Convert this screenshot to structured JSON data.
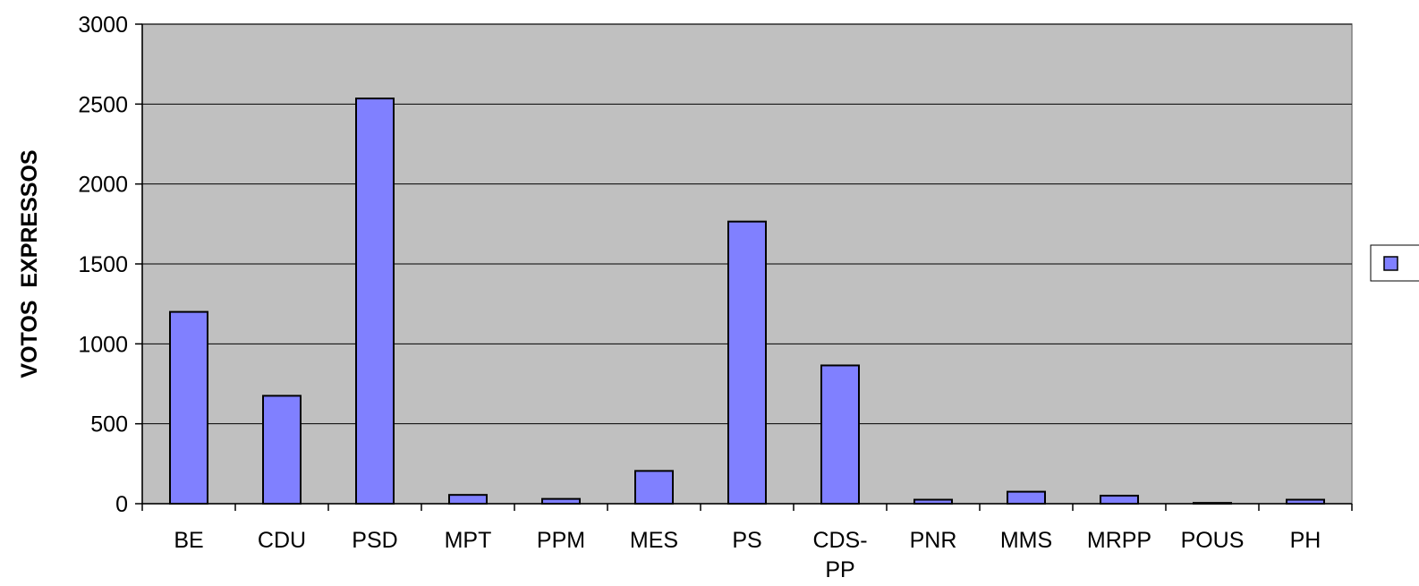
{
  "chart_data": {
    "type": "bar",
    "categories": [
      [
        "BE"
      ],
      [
        "CDU"
      ],
      [
        "PSD"
      ],
      [
        "MPT"
      ],
      [
        "PPM"
      ],
      [
        "MES"
      ],
      [
        "PS"
      ],
      [
        "CDS-",
        "PP"
      ],
      [
        "PNR"
      ],
      [
        "MMS"
      ],
      [
        "MRPP"
      ],
      [
        "POUS"
      ],
      [
        "PH"
      ]
    ],
    "values": [
      1200,
      675,
      2535,
      55,
      30,
      205,
      1765,
      865,
      25,
      75,
      50,
      5,
      25
    ],
    "title": "",
    "xlabel": "",
    "ylabel": "VOTOS  EXPRESSOS",
    "ylim": [
      0,
      3000
    ],
    "yticks": [
      0,
      500,
      1000,
      1500,
      2000,
      2500,
      3000
    ],
    "grid": true,
    "legend": "right",
    "colors": {
      "bar_fill": "#8080ff",
      "bar_stroke": "#000000",
      "plot_background": "#c0c0c0",
      "gridline": "#000000",
      "page_background": "#ffffff"
    }
  }
}
